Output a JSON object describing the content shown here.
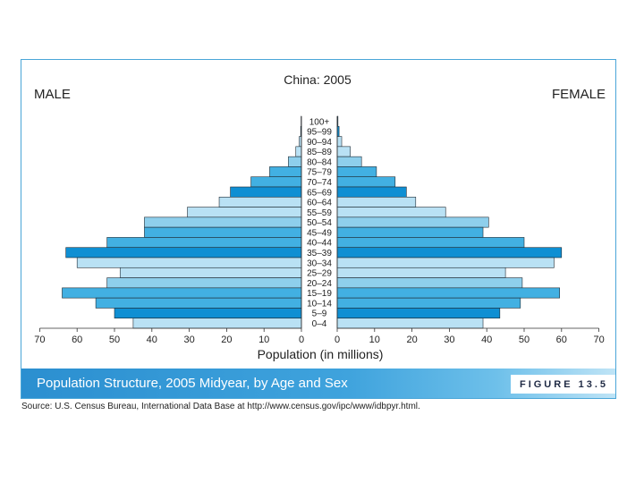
{
  "chart_data": {
    "type": "bar",
    "title": "China: 2005",
    "left_label": "MALE",
    "right_label": "FEMALE",
    "xlabel": "Population (in millions)",
    "xlim": [
      0,
      70
    ],
    "xticks_male": [
      70,
      60,
      50,
      40,
      30,
      20,
      10,
      0
    ],
    "xticks_female": [
      0,
      10,
      20,
      30,
      40,
      50,
      60,
      70
    ],
    "categories": [
      "100+",
      "95–99",
      "90–94",
      "85–89",
      "80–84",
      "75–79",
      "70–74",
      "65–69",
      "60–64",
      "55–59",
      "50–54",
      "45–49",
      "40–44",
      "35–39",
      "30–34",
      "25–29",
      "20–24",
      "15–19",
      "10–14",
      "5–9",
      "0–4"
    ],
    "series": [
      {
        "name": "MALE",
        "values": [
          0.1,
          0.2,
          0.6,
          1.5,
          3.5,
          8.5,
          13.5,
          19,
          22,
          30.5,
          42,
          42,
          52,
          63,
          60,
          48.5,
          52,
          64,
          55,
          50,
          45
        ]
      },
      {
        "name": "FEMALE",
        "values": [
          0.2,
          0.5,
          1.2,
          3.5,
          6.5,
          10.5,
          15.5,
          18.5,
          21,
          29,
          40.5,
          39,
          50,
          60,
          58,
          45,
          49.5,
          59.5,
          49,
          43.5,
          39
        ]
      }
    ],
    "colors": [
      "#42b0e2",
      "#8ecfec",
      "#b9e1f4",
      "#0f8fd3"
    ]
  },
  "caption": {
    "title": "Population Structure, 2005 Midyear, by Age and Sex",
    "figure": "FIGURE 13.5"
  },
  "source": "Source: U.S. Census Bureau, International Data Base at http://www.census.gov/ipc/www/idbpyr.html."
}
